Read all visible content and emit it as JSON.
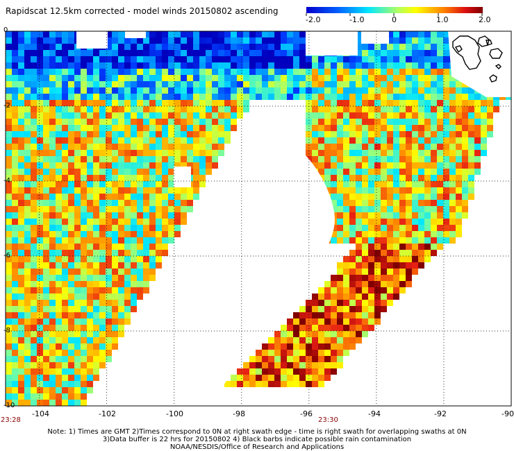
{
  "title": "Rapidscat 12.5km corrected - model winds 20150802 ascending",
  "colorbar": {
    "labels": [
      "-2.0",
      "-1.0",
      "0",
      "1.0",
      "2.0"
    ],
    "range": [
      -2.0,
      2.0
    ],
    "colors": [
      "#0000cc",
      "#0080ff",
      "#00e5ff",
      "#ffff00",
      "#ff8000",
      "#cc0000",
      "#800000"
    ]
  },
  "map": {
    "lon_labels": [
      "-104",
      "-102",
      "-100",
      "-98",
      "-96",
      "-94",
      "-92",
      "-90"
    ],
    "lat_labels": [
      "0",
      "-2",
      "-4",
      "-6",
      "-8",
      "-10"
    ],
    "lon_range": [
      -105,
      -90
    ],
    "lat_range": [
      -10,
      0
    ],
    "time_labels": [
      "23:28",
      "23:30"
    ],
    "grid": "dotted",
    "land_outline": "Galapagos Islands"
  },
  "notes": [
    "Note: 1) Times are GMT 2)Times correspond to 0N at right swath edge - time is right swath for overlapping swaths at 0N",
    "3)Data buffer is 22 hrs for 20150802 4) Black barbs indicate possible rain contamination",
    "NOAA/NESDIS/Office of Research and Applications"
  ]
}
